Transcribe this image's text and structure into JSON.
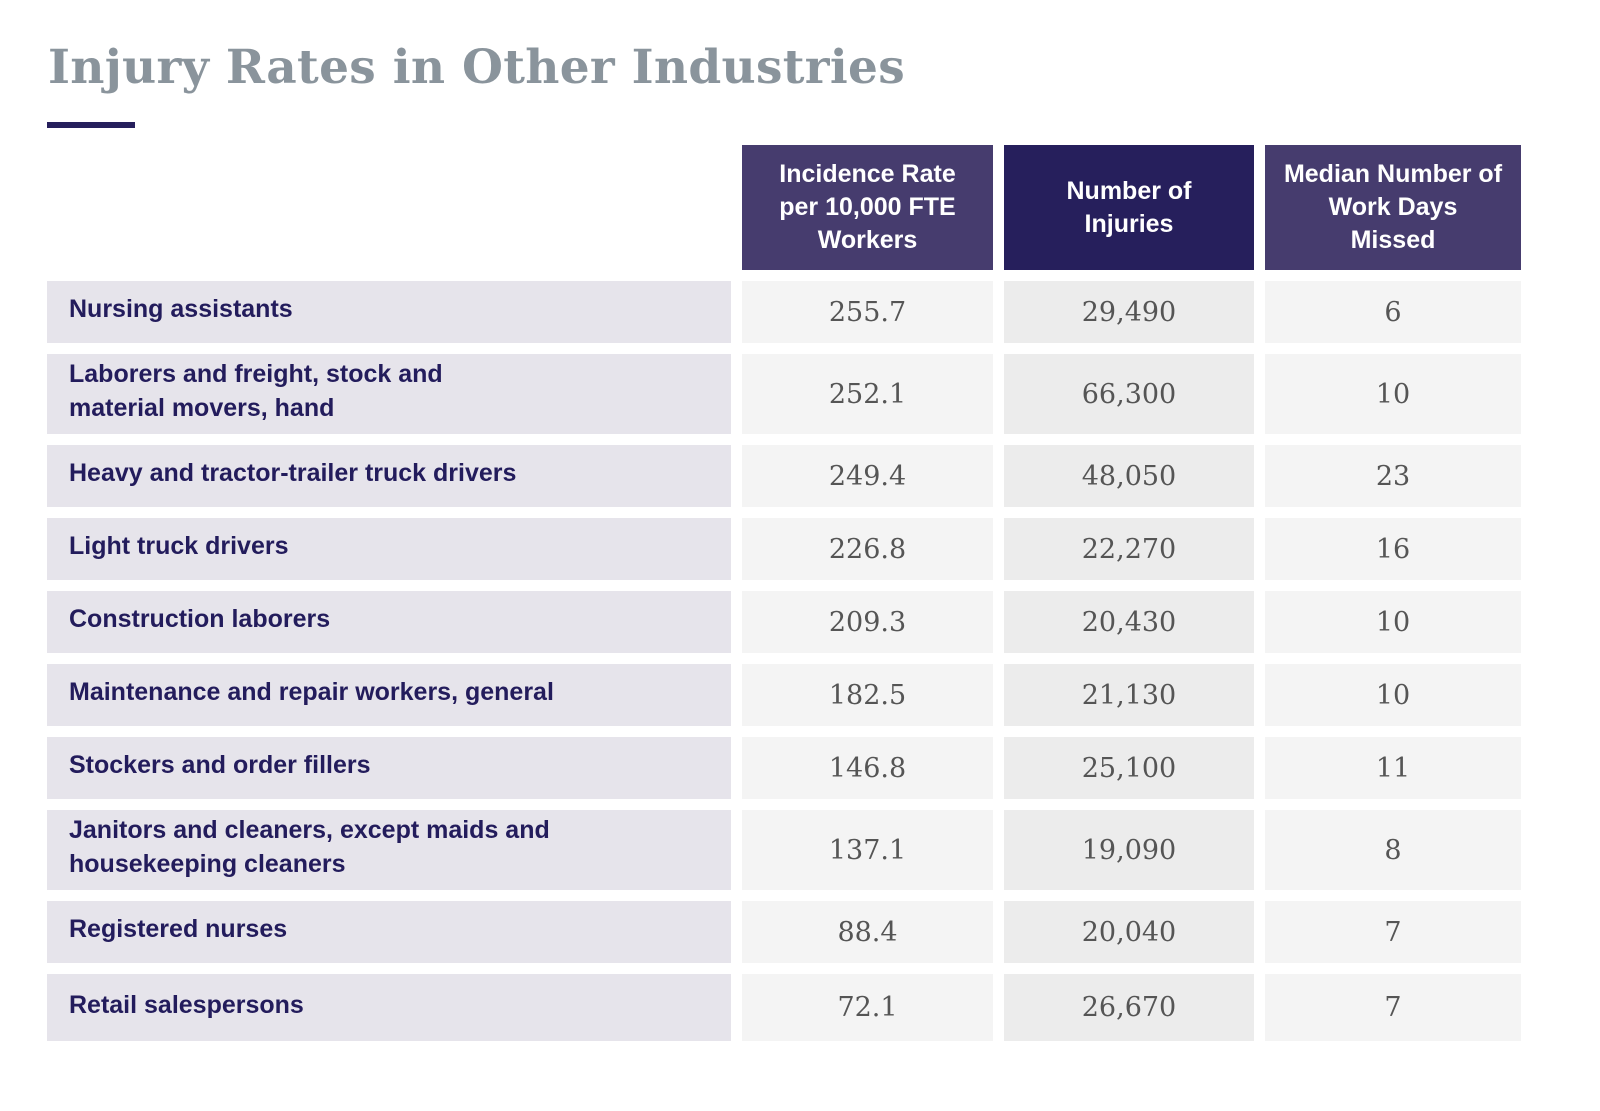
{
  "title": "Injury Rates in Other Industries",
  "colors": {
    "title": "#8a949c",
    "accent": "#261f5c",
    "header": "#463c6e",
    "label_bg": "#e6e4eb"
  },
  "headers": [
    "Incidence Rate per 10,000 FTE Workers",
    "Number of Injuries",
    "Median Number of Work Days Missed"
  ],
  "rows": [
    {
      "occupation": "Nursing assistants",
      "rate": "255.7",
      "injuries": "29,490",
      "days": "6"
    },
    {
      "occupation": "Laborers and freight, stock and material movers, hand",
      "rate": "252.1",
      "injuries": "66,300",
      "days": "10"
    },
    {
      "occupation": "Heavy and tractor-trailer truck drivers",
      "rate": "249.4",
      "injuries": "48,050",
      "days": "23"
    },
    {
      "occupation": "Light truck drivers",
      "rate": "226.8",
      "injuries": "22,270",
      "days": "16"
    },
    {
      "occupation": "Construction laborers",
      "rate": "209.3",
      "injuries": "20,430",
      "days": "10"
    },
    {
      "occupation": "Maintenance and repair workers, general",
      "rate": "182.5",
      "injuries": "21,130",
      "days": "10"
    },
    {
      "occupation": "Stockers and order fillers",
      "rate": "146.8",
      "injuries": "25,100",
      "days": "11"
    },
    {
      "occupation": "Janitors and cleaners, except maids and housekeeping cleaners",
      "rate": "137.1",
      "injuries": "19,090",
      "days": "8"
    },
    {
      "occupation": "Registered nurses",
      "rate": "88.4",
      "injuries": "20,040",
      "days": "7"
    },
    {
      "occupation": "Retail salespersons",
      "rate": "72.1",
      "injuries": "26,670",
      "days": "7"
    }
  ]
}
